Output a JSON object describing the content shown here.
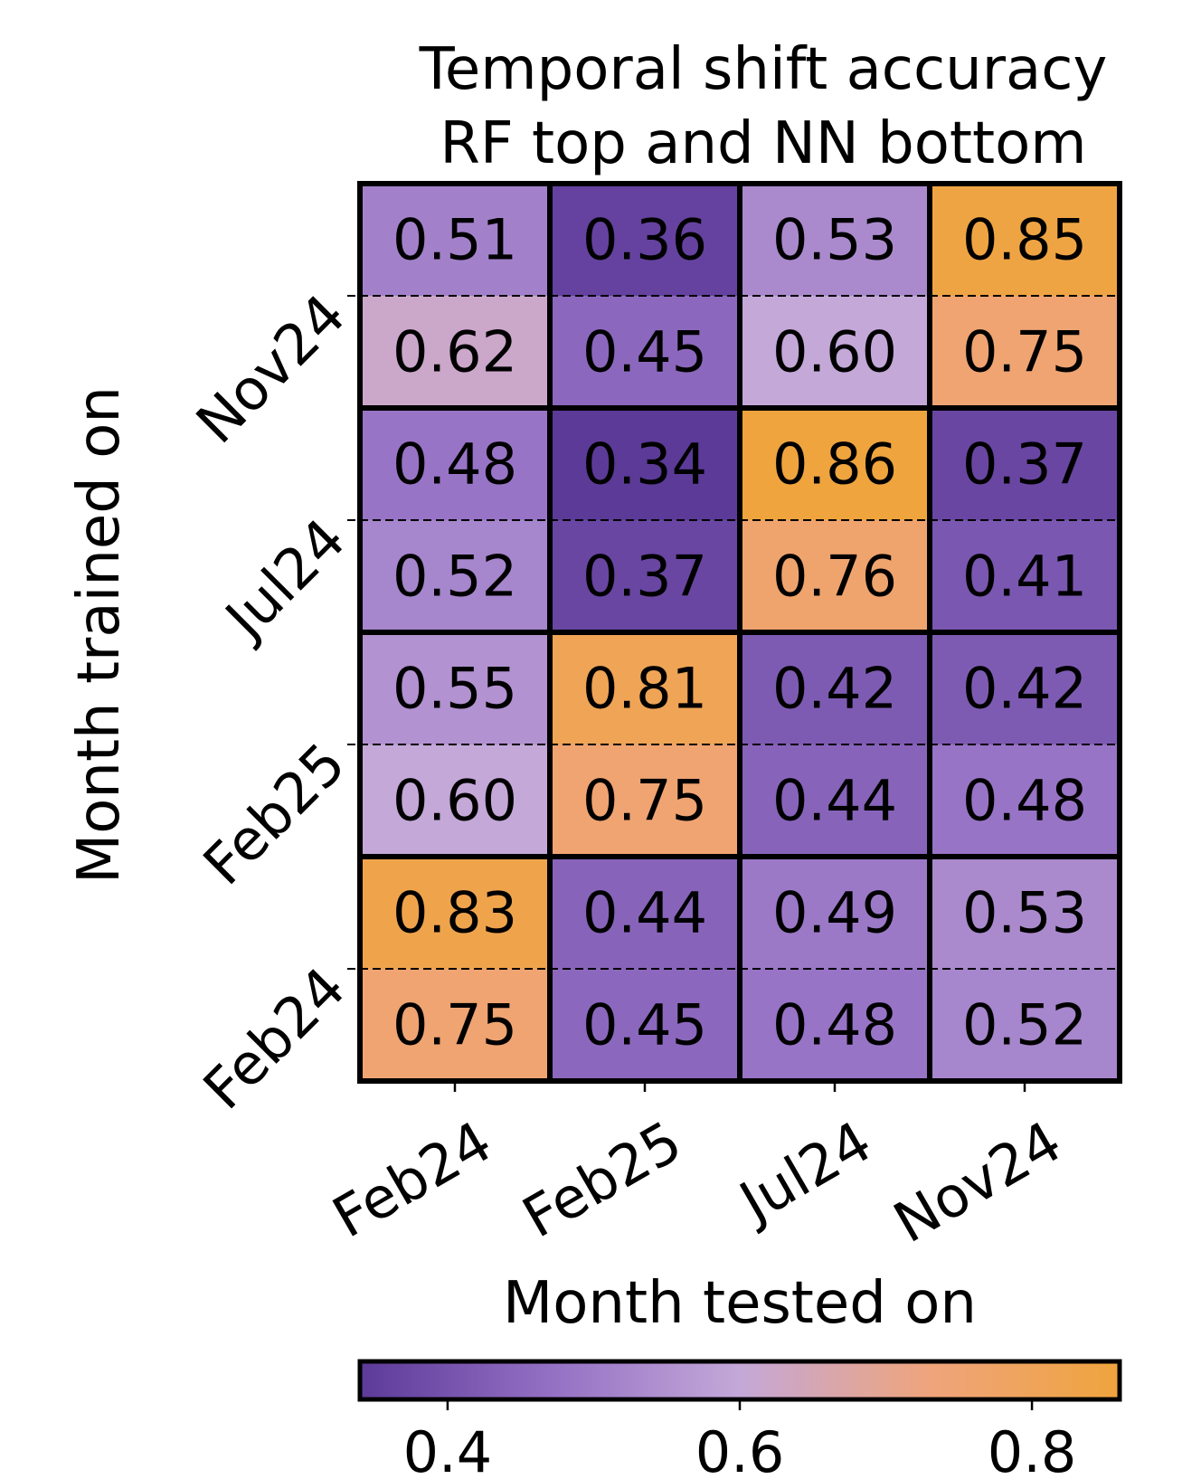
{
  "chart_data": {
    "type": "heatmap",
    "title": [
      "Temporal shift accuracy",
      "RF top and NN bottom"
    ],
    "xlabel": "Month tested on",
    "ylabel": "Month trained on",
    "x_categories": [
      "Feb24",
      "Feb25",
      "Jul24",
      "Nov24"
    ],
    "y_categories": [
      "Nov24",
      "Jul24",
      "Feb25",
      "Feb24"
    ],
    "row_split": [
      "RF",
      "NN"
    ],
    "values": [
      [
        [
          0.51,
          0.36,
          0.53,
          0.85
        ],
        [
          0.62,
          0.45,
          0.6,
          0.75
        ]
      ],
      [
        [
          0.48,
          0.34,
          0.86,
          0.37
        ],
        [
          0.52,
          0.37,
          0.76,
          0.41
        ]
      ],
      [
        [
          0.55,
          0.81,
          0.42,
          0.42
        ],
        [
          0.6,
          0.75,
          0.44,
          0.48
        ]
      ],
      [
        [
          0.83,
          0.44,
          0.49,
          0.53
        ],
        [
          0.75,
          0.45,
          0.48,
          0.52
        ]
      ]
    ],
    "colorbar": {
      "range": [
        0.34,
        0.86
      ],
      "ticks": [
        0.4,
        0.6,
        0.8
      ],
      "tick_labels": [
        "0.4",
        "0.6",
        "0.8"
      ],
      "colors": [
        "#5c3a98",
        "#9470c4",
        "#c4a8d8",
        "#efa47c",
        "#efa43e"
      ]
    }
  }
}
